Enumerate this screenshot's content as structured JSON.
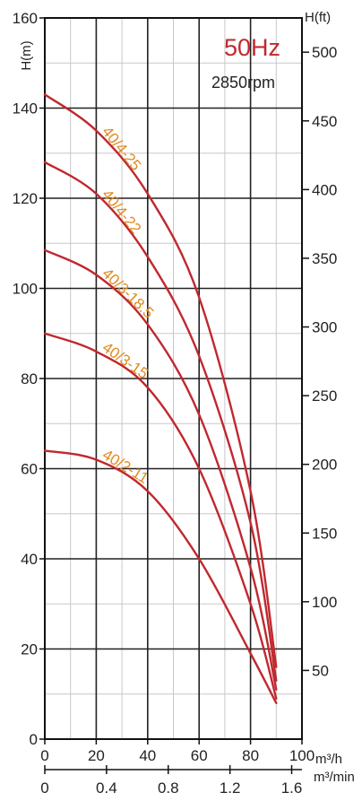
{
  "chart_data": {
    "type": "line",
    "badge": {
      "frequency": "50Hz",
      "speed": "2850rpm"
    },
    "left_axis": {
      "label": "H(m)",
      "range": [
        0,
        160
      ],
      "ticks": [
        0,
        20,
        40,
        60,
        80,
        100,
        120,
        140,
        160
      ]
    },
    "right_axis": {
      "label": "H(ft)",
      "ticks": [
        50,
        100,
        150,
        200,
        250,
        300,
        350,
        400,
        450,
        500
      ]
    },
    "x_axis": {
      "unit": "m³/h",
      "range": [
        0,
        100
      ],
      "ticks": [
        0,
        20,
        40,
        60,
        80,
        100
      ],
      "tick_labels": [
        "0",
        "20",
        "40",
        "60",
        "80",
        "100"
      ]
    },
    "x_axis_secondary": {
      "unit": "m³/min",
      "ticks": [
        0,
        0.4,
        0.8,
        1.2,
        1.6
      ],
      "tick_labels": [
        "0",
        "0.4",
        "0.8",
        "1.2",
        "1.6"
      ]
    },
    "grid": true,
    "line_color": "#c0282e",
    "label_color": "#e08a1e",
    "series": [
      {
        "name": "40/4-25",
        "x": [
          0,
          20,
          40,
          60,
          80,
          90
        ],
        "y": [
          143,
          135,
          121,
          98,
          55,
          16
        ]
      },
      {
        "name": "40/4-22",
        "x": [
          0,
          20,
          40,
          60,
          80,
          90
        ],
        "y": [
          128,
          121,
          107,
          85,
          48,
          13
        ]
      },
      {
        "name": "40/3-18.5",
        "x": [
          0,
          20,
          40,
          60,
          80,
          90
        ],
        "y": [
          108.5,
          103,
          92,
          72,
          38,
          11
        ]
      },
      {
        "name": "40/3-15",
        "x": [
          0,
          20,
          40,
          60,
          80,
          90
        ],
        "y": [
          90,
          86,
          78,
          60,
          30,
          9
        ]
      },
      {
        "name": "40/2-11",
        "x": [
          0,
          20,
          40,
          60,
          80,
          90
        ],
        "y": [
          64,
          62,
          55,
          40,
          19,
          8
        ]
      }
    ]
  }
}
